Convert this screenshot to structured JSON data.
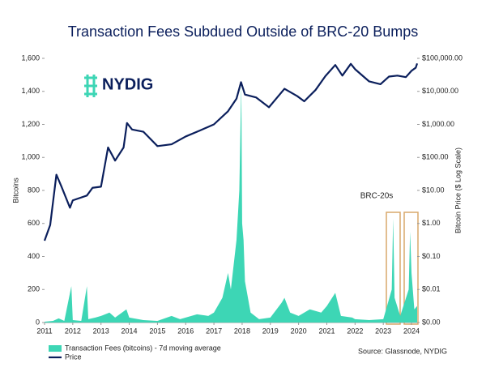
{
  "chart_data": {
    "type": "line",
    "title": "Transaction Fees Subdued Outside of BRC-20 Bumps",
    "logo": "NYDIG",
    "y_label": "Bitcoins",
    "y2_label": "Bitcoin Price ($ Log Scale)",
    "annotation": "BRC-20s",
    "source": "Source: Glassnode, NYDIG",
    "xlim": [
      2011,
      2024.2
    ],
    "xticks": [
      2011,
      2012,
      2013,
      2014,
      2015,
      2016,
      2017,
      2018,
      2019,
      2020,
      2021,
      2022,
      2023,
      2024
    ],
    "ylim": [
      0,
      1600
    ],
    "yticks": [
      0,
      200,
      400,
      600,
      800,
      {
        "value": 1000,
        "label": "1,000"
      },
      {
        "value": 1200,
        "label": "1,200"
      },
      {
        "value": 1400,
        "label": "1,400"
      },
      {
        "value": 1600,
        "label": "1,600"
      }
    ],
    "y2lim": [
      0.001,
      100000
    ],
    "y2log": true,
    "y2ticks": [
      {
        "value": 0.001,
        "label": "$0.00"
      },
      {
        "value": 0.01,
        "label": "$0.01"
      },
      {
        "value": 0.1,
        "label": "$0.10"
      },
      {
        "value": 1,
        "label": "$1.00"
      },
      {
        "value": 10,
        "label": "$10.00"
      },
      {
        "value": 100,
        "label": "$100.00"
      },
      {
        "value": 1000,
        "label": "$1,000.00"
      },
      {
        "value": 10000,
        "label": "$10,000.00"
      },
      {
        "value": 100000,
        "label": "$100,000.00"
      }
    ],
    "series": [
      {
        "name": "Transaction Fees (bitcoins) - 7d moving average",
        "color": "#3dd6b5",
        "kind": "area",
        "x": [
          2011.0,
          2011.3,
          2011.5,
          2011.7,
          2011.95,
          2012.0,
          2012.3,
          2012.5,
          2012.55,
          2012.8,
          2013.0,
          2013.3,
          2013.5,
          2013.9,
          2014.0,
          2014.5,
          2015.0,
          2015.5,
          2015.8,
          2016.0,
          2016.4,
          2016.8,
          2017.0,
          2017.3,
          2017.5,
          2017.6,
          2017.8,
          2017.9,
          2017.97,
          2018.0,
          2018.05,
          2018.1,
          2018.3,
          2018.6,
          2019.0,
          2019.4,
          2019.5,
          2019.7,
          2020.0,
          2020.4,
          2020.8,
          2021.0,
          2021.3,
          2021.5,
          2021.9,
          2022.0,
          2022.5,
          2023.0,
          2023.3,
          2023.35,
          2023.4,
          2023.6,
          2023.9,
          2023.95,
          2024.0,
          2024.1,
          2024.2
        ],
        "values": [
          5,
          10,
          25,
          10,
          220,
          15,
          10,
          220,
          20,
          30,
          40,
          60,
          30,
          80,
          30,
          15,
          10,
          40,
          20,
          30,
          50,
          40,
          60,
          150,
          300,
          200,
          500,
          800,
          1450,
          600,
          500,
          250,
          60,
          20,
          30,
          120,
          150,
          60,
          40,
          80,
          60,
          100,
          180,
          40,
          30,
          20,
          15,
          20,
          200,
          630,
          150,
          40,
          200,
          550,
          300,
          80,
          100
        ]
      },
      {
        "name": "Price",
        "color": "#0b1f5c",
        "kind": "line",
        "axis": "y2",
        "x": [
          2011.0,
          2011.2,
          2011.42,
          2011.6,
          2011.9,
          2012.0,
          2012.5,
          2012.7,
          2013.0,
          2013.25,
          2013.5,
          2013.8,
          2013.92,
          2014.1,
          2014.5,
          2015.0,
          2015.5,
          2016.0,
          2016.5,
          2017.0,
          2017.5,
          2017.8,
          2017.96,
          2018.1,
          2018.5,
          2018.95,
          2019.5,
          2019.95,
          2020.2,
          2020.6,
          2020.95,
          2021.3,
          2021.55,
          2021.85,
          2022.0,
          2022.5,
          2022.9,
          2023.2,
          2023.5,
          2023.8,
          2024.0,
          2024.15,
          2024.2
        ],
        "values": [
          0.3,
          0.9,
          30,
          13,
          3,
          5,
          7,
          12,
          13,
          200,
          80,
          200,
          1100,
          700,
          600,
          220,
          250,
          430,
          650,
          1000,
          2500,
          6000,
          19000,
          8000,
          6500,
          3300,
          12000,
          7200,
          5000,
          11000,
          29000,
          63000,
          30000,
          68000,
          47000,
          20000,
          16500,
          28000,
          30000,
          27000,
          42000,
          52000,
          70000
        ]
      }
    ]
  }
}
